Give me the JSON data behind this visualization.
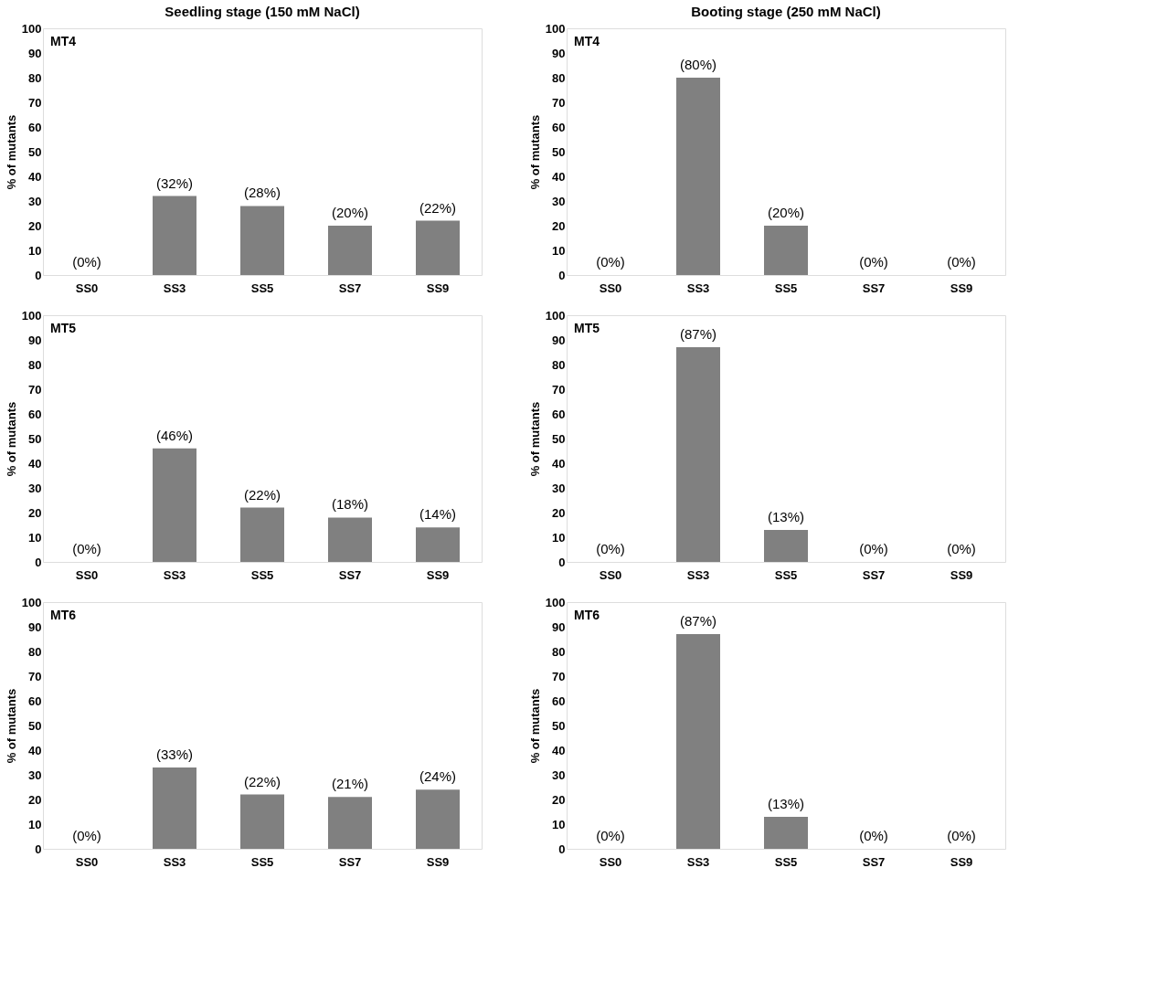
{
  "chart_data": [
    {
      "type": "bar",
      "title": "Seedling stage (150 mM NaCl)",
      "ylabel": "% of mutants",
      "annotations": [
        "MT4"
      ],
      "categories": [
        "SS0",
        "SS3",
        "SS5",
        "SS7",
        "SS9"
      ],
      "values": [
        0,
        32,
        28,
        20,
        22
      ],
      "value_labels": [
        "(0%)",
        "(32%)",
        "(28%)",
        "(20%)",
        "(22%)"
      ],
      "color": "#808080",
      "ylim": [
        0,
        100
      ],
      "yticks": [
        0,
        10,
        20,
        30,
        40,
        50,
        60,
        70,
        80,
        90,
        100
      ],
      "grid": false
    },
    {
      "type": "bar",
      "title": "Booting stage (250 mM NaCl)",
      "ylabel": "% of mutants",
      "annotations": [
        "MT4"
      ],
      "categories": [
        "SS0",
        "SS3",
        "SS5",
        "SS7",
        "SS9"
      ],
      "values": [
        0,
        80,
        20,
        0,
        0
      ],
      "value_labels": [
        "(0%)",
        "(80%)",
        "(20%)",
        "(0%)",
        "(0%)"
      ],
      "color": "#808080",
      "ylim": [
        0,
        100
      ],
      "yticks": [
        0,
        10,
        20,
        30,
        40,
        50,
        60,
        70,
        80,
        90,
        100
      ],
      "grid": false
    },
    {
      "type": "bar",
      "ylabel": "% of mutants",
      "annotations": [
        "MT5"
      ],
      "categories": [
        "SS0",
        "SS3",
        "SS5",
        "SS7",
        "SS9"
      ],
      "values": [
        0,
        46,
        22,
        18,
        14
      ],
      "value_labels": [
        "(0%)",
        "(46%)",
        "(22%)",
        "(18%)",
        "(14%)"
      ],
      "color": "#808080",
      "ylim": [
        0,
        100
      ],
      "yticks": [
        0,
        10,
        20,
        30,
        40,
        50,
        60,
        70,
        80,
        90,
        100
      ],
      "grid": false
    },
    {
      "type": "bar",
      "ylabel": "% of mutants",
      "annotations": [
        "MT5"
      ],
      "categories": [
        "SS0",
        "SS3",
        "SS5",
        "SS7",
        "SS9"
      ],
      "values": [
        0,
        87,
        13,
        0,
        0
      ],
      "value_labels": [
        "(0%)",
        "(87%)",
        "(13%)",
        "(0%)",
        "(0%)"
      ],
      "color": "#808080",
      "ylim": [
        0,
        100
      ],
      "yticks": [
        0,
        10,
        20,
        30,
        40,
        50,
        60,
        70,
        80,
        90,
        100
      ],
      "grid": false
    },
    {
      "type": "bar",
      "ylabel": "% of mutants",
      "annotations": [
        "MT6"
      ],
      "categories": [
        "SS0",
        "SS3",
        "SS5",
        "SS7",
        "SS9"
      ],
      "values": [
        0,
        33,
        22,
        21,
        24
      ],
      "value_labels": [
        "(0%)",
        "(33%)",
        "(22%)",
        "(21%)",
        "(24%)"
      ],
      "color": "#808080",
      "ylim": [
        0,
        100
      ],
      "yticks": [
        0,
        10,
        20,
        30,
        40,
        50,
        60,
        70,
        80,
        90,
        100
      ],
      "grid": false
    },
    {
      "type": "bar",
      "ylabel": "% of mutants",
      "annotations": [
        "MT6"
      ],
      "categories": [
        "SS0",
        "SS3",
        "SS5",
        "SS7",
        "SS9"
      ],
      "values": [
        0,
        87,
        13,
        0,
        0
      ],
      "value_labels": [
        "(0%)",
        "(87%)",
        "(13%)",
        "(0%)",
        "(0%)"
      ],
      "color": "#808080",
      "ylim": [
        0,
        100
      ],
      "yticks": [
        0,
        10,
        20,
        30,
        40,
        50,
        60,
        70,
        80,
        90,
        100
      ],
      "grid": false
    }
  ]
}
